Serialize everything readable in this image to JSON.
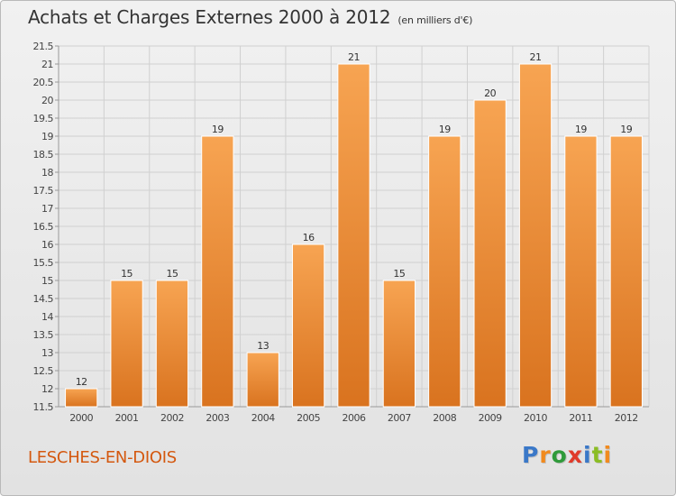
{
  "header": {
    "title": "Achats et Charges Externes 2000 à 2012",
    "subtitle": "(en milliers d'€)"
  },
  "footer": {
    "commune": "LESCHES-EN-DIOIS",
    "logo": "Proxiti"
  },
  "colors": {
    "bar_top": "#f7a452",
    "bar_bottom": "#d9731f",
    "logo": [
      "#3a78c8",
      "#f18a1e",
      "#2f9a3a",
      "#e03a2a",
      "#3a78c8",
      "#8bbd24",
      "#f18a1e"
    ]
  },
  "chart_data": {
    "type": "bar",
    "title": "Achats et Charges Externes 2000 à 2012",
    "subtitle": "(en milliers d'€)",
    "categories": [
      "2000",
      "2001",
      "2002",
      "2003",
      "2004",
      "2005",
      "2006",
      "2007",
      "2008",
      "2009",
      "2010",
      "2011",
      "2012"
    ],
    "values": [
      12,
      15,
      15,
      19,
      13,
      16,
      21,
      15,
      19,
      20,
      21,
      19,
      19
    ],
    "data_labels": [
      "12",
      "15",
      "15",
      "19",
      "13",
      "16",
      "21",
      "15",
      "19",
      "20",
      "21",
      "19",
      "19"
    ],
    "ylim": [
      11.5,
      21.5
    ],
    "yticks": [
      11.5,
      12,
      12.5,
      13,
      13.5,
      14,
      14.5,
      15,
      15.5,
      16,
      16.5,
      17,
      17.5,
      18,
      18.5,
      19,
      19.5,
      20,
      20.5,
      21,
      21.5
    ],
    "ytick_labels": [
      "11.5",
      "12",
      "12.5",
      "13",
      "13.5",
      "14",
      "14.5",
      "15",
      "15.5",
      "16",
      "16.5",
      "17",
      "17.5",
      "18",
      "18.5",
      "19",
      "19.5",
      "20",
      "20.5",
      "21",
      "21.5"
    ],
    "grid": true,
    "legend": "none"
  }
}
